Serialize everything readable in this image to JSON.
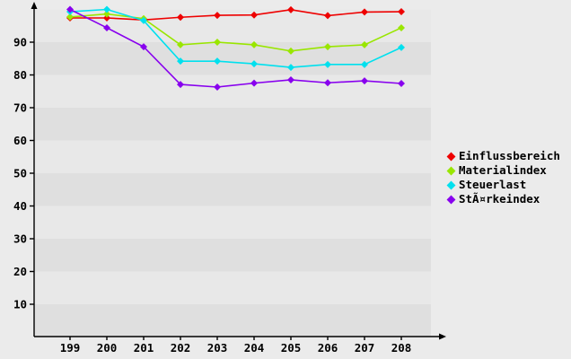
{
  "chart_data": {
    "type": "line",
    "title": "",
    "xlabel": "",
    "ylabel": "",
    "categories": [
      "199",
      "200",
      "201",
      "202",
      "203",
      "204",
      "205",
      "206",
      "207",
      "208"
    ],
    "yticks": [
      10,
      20,
      30,
      40,
      50,
      60,
      70,
      80,
      90
    ],
    "ylim": [
      0,
      100
    ],
    "grid": "alternating-horizontal-bands",
    "legend_position": "right",
    "marker": "diamond",
    "series": [
      {
        "name": "Einflussbereich",
        "color": "#ee0000",
        "values": [
          97.4,
          97.4,
          96.8,
          97.6,
          98.2,
          98.3,
          99.9,
          98.1,
          99.2,
          99.3
        ]
      },
      {
        "name": "Materialindex",
        "color": "#99e600",
        "values": [
          97.7,
          98.6,
          97.2,
          89.2,
          90.0,
          89.2,
          87.3,
          88.6,
          89.2,
          94.4
        ]
      },
      {
        "name": "Steuerlast",
        "color": "#00e0ee",
        "values": [
          99.3,
          100.0,
          96.6,
          84.2,
          84.2,
          83.4,
          82.3,
          83.2,
          83.2,
          88.4
        ]
      },
      {
        "name": "StÃ¤rkeindex",
        "color": "#8800ee",
        "values": [
          100.0,
          94.4,
          88.6,
          77.1,
          76.3,
          77.5,
          78.5,
          77.6,
          78.2,
          77.4
        ]
      }
    ],
    "colors": {
      "background": "#ebebeb",
      "band_light": "#e8e8e8",
      "band_dark": "#dfdfdf",
      "axis": "#000000",
      "tick_text": "#000000"
    }
  }
}
